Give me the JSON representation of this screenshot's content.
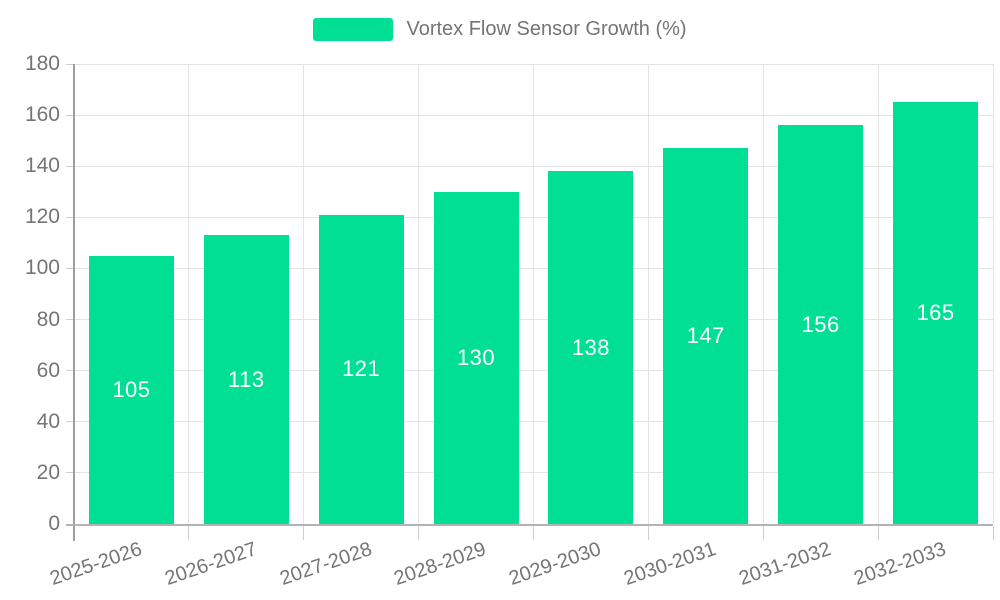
{
  "legend": {
    "label": "Vortex Flow Sensor Growth (%)"
  },
  "chart_data": {
    "type": "bar",
    "title": "Vortex Flow Sensor Growth (%)",
    "categories": [
      "2025-2026",
      "2026-2027",
      "2027-2028",
      "2028-2029",
      "2029-2030",
      "2030-2031",
      "2031-2032",
      "2032-2033"
    ],
    "values": [
      105,
      113,
      121,
      130,
      138,
      147,
      156,
      165
    ],
    "xlabel": "",
    "ylabel": "",
    "ylim": [
      0,
      180
    ],
    "ytick_step": 20,
    "yticks": [
      0,
      20,
      40,
      60,
      80,
      100,
      120,
      140,
      160,
      180
    ],
    "grid": true,
    "legend_position": "top",
    "x_label_rotation_deg": -19,
    "colors": {
      "bar": "#00DF94",
      "value_label": "#FFFFFF",
      "axis_text": "#757575",
      "grid": "#E4E4E4",
      "tick": "#CFCFCF",
      "y_axis_line": "#9E9E9E",
      "x_axis_line": "#B3B3B3",
      "background": "#FFFFFF"
    }
  }
}
